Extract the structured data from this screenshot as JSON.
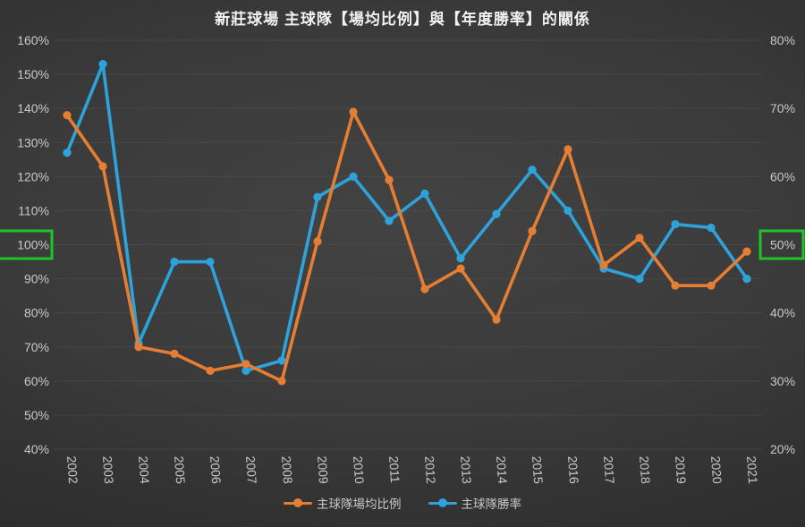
{
  "title": "新莊球場 主球隊【場均比例】與【年度勝率】的關係",
  "chart_data": {
    "type": "line",
    "title": "新莊球場 主球隊【場均比例】與【年度勝率】的關係",
    "categories": [
      "2002",
      "2003",
      "2004",
      "2005",
      "2006",
      "2007",
      "2008",
      "2009",
      "2010",
      "2011",
      "2012",
      "2013",
      "2014",
      "2015",
      "2016",
      "2017",
      "2018",
      "2019",
      "2020",
      "2021"
    ],
    "series": [
      {
        "name": "主球隊場均比例",
        "axis": "left",
        "color": "#E57E33",
        "values": [
          138,
          123,
          70,
          68,
          63,
          65,
          60,
          101,
          139,
          119,
          87,
          93,
          78,
          104,
          128,
          94,
          102,
          88,
          88,
          98
        ]
      },
      {
        "name": "主球隊勝率",
        "axis": "right",
        "color": "#2EA2DB",
        "values": [
          63.5,
          76.5,
          35.5,
          47.5,
          47.5,
          31.5,
          33,
          57,
          60,
          53.5,
          57.5,
          48,
          54.5,
          61,
          55,
          46.5,
          45,
          53,
          52.5,
          45
        ]
      }
    ],
    "left_axis": {
      "min": 40,
      "max": 160,
      "step": 10,
      "unit": "%",
      "labels": [
        "160%",
        "150%",
        "140%",
        "130%",
        "120%",
        "110%",
        "100%",
        "90%",
        "80%",
        "70%",
        "60%",
        "50%",
        "40%"
      ]
    },
    "right_axis": {
      "min": 20,
      "max": 80,
      "step": 10,
      "unit": "%",
      "labels": [
        "80%",
        "70%",
        "60%",
        "50%",
        "40%",
        "30%",
        "20%"
      ]
    },
    "highlights": [
      {
        "axis": "left",
        "label": "100%"
      },
      {
        "axis": "right",
        "label": "50%"
      }
    ],
    "highlight_color": "#1FC32C",
    "grid": true,
    "legend_position": "bottom"
  },
  "legend": {
    "items": [
      {
        "label": "主球隊場均比例",
        "color": "#E57E33"
      },
      {
        "label": "主球隊勝率",
        "color": "#2EA2DB"
      }
    ]
  },
  "colors": {
    "background_center": "#434343",
    "background_edge": "#1f1f1f",
    "gridline": "#525252",
    "axis_text": "#c9c9c9",
    "title_text": "#f2f2f2",
    "highlight_green": "#1FC32C"
  }
}
